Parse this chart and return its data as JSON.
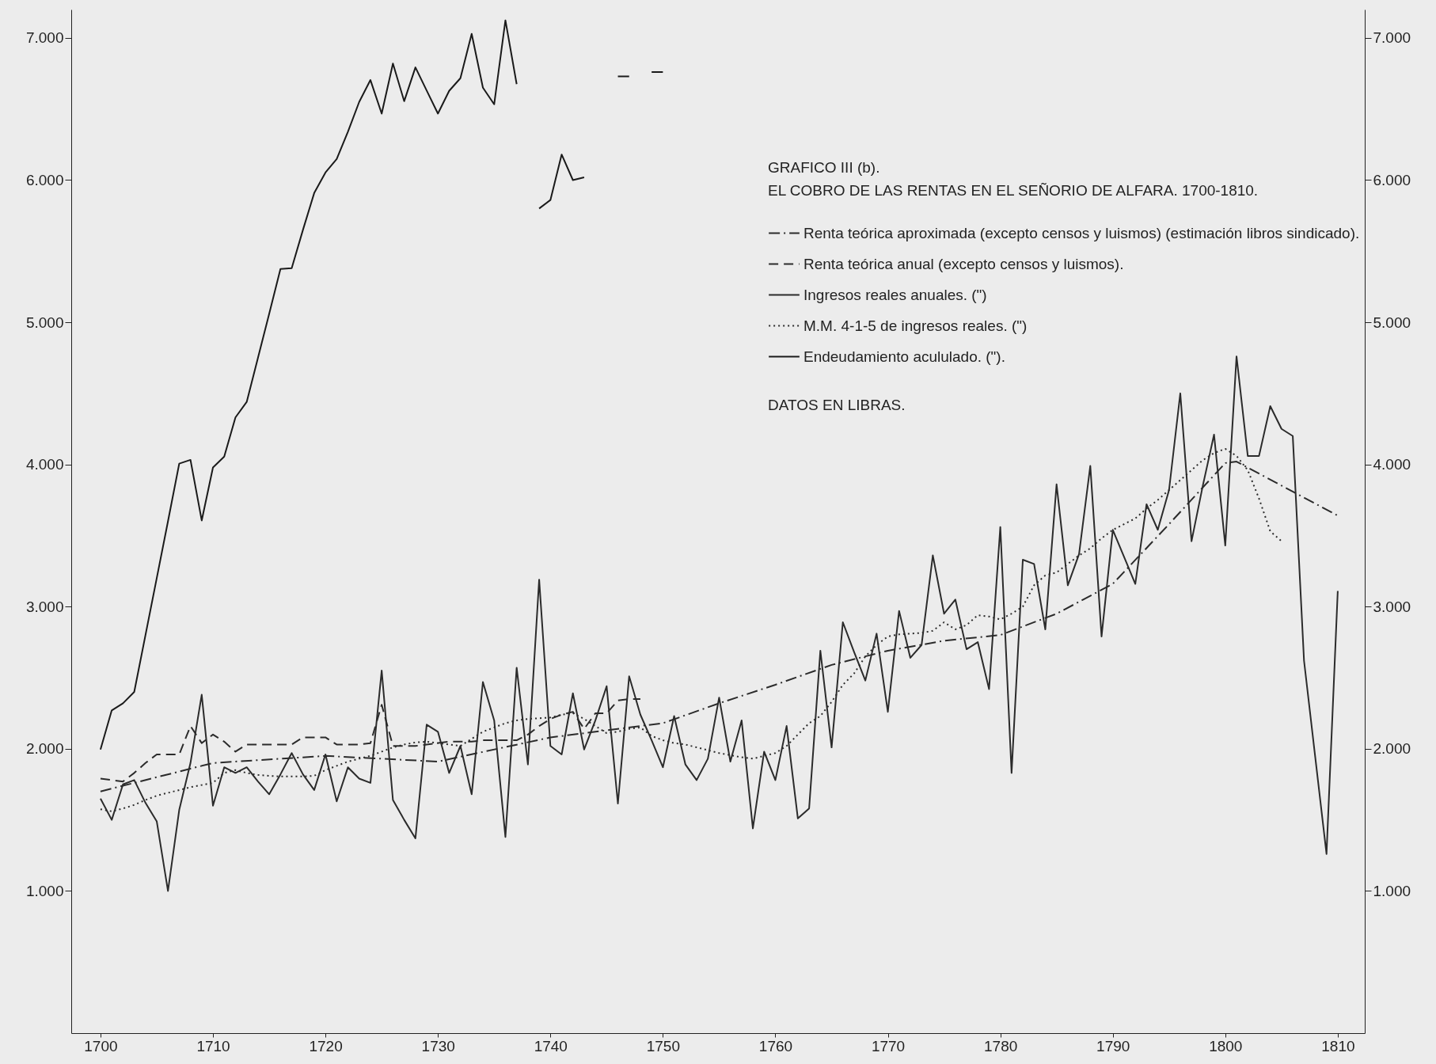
{
  "chart_data": {
    "type": "line",
    "title": "GRAFICO III (b).",
    "subtitle": "EL COBRO DE LAS RENTAS EN EL SEÑORIO DE ALFARA. 1700-1810.",
    "annotations": [
      "DATOS EN LIBRAS."
    ],
    "xlim": [
      1697.4,
      1812.4
    ],
    "xticks": [
      1700,
      1710,
      1720,
      1730,
      1740,
      1750,
      1760,
      1770,
      1780,
      1790,
      1800,
      1810
    ],
    "ylim": [
      0,
      7200
    ],
    "yticks": [
      {
        "value": 1000,
        "label": "1.000"
      },
      {
        "value": 2000,
        "label": "2.000"
      },
      {
        "value": 3000,
        "label": "3.000"
      },
      {
        "value": 4000,
        "label": "4.000"
      },
      {
        "value": 5000,
        "label": "5.000"
      },
      {
        "value": 6000,
        "label": "6.000"
      },
      {
        "value": 7000,
        "label": "7.000"
      }
    ],
    "y2lim": [
      0,
      7200
    ],
    "y2ticks": [
      {
        "value": 1000,
        "label": "1.000"
      },
      {
        "value": 2000,
        "label": "2.000"
      },
      {
        "value": 3000,
        "label": "3.000"
      },
      {
        "value": 4000,
        "label": "4.000"
      },
      {
        "value": 5000,
        "label": "5.000"
      },
      {
        "value": 6000,
        "label": "6.000"
      },
      {
        "value": 7000,
        "label": "7.000"
      }
    ],
    "legend": "top right",
    "series": [
      {
        "name": "Renta teórica aproximada (excepto censos y luismos) (estimación libros sindicado).",
        "color": "#2b2b2b",
        "line_style": "dashdot",
        "x": [
          1700,
          1710,
          1720,
          1730,
          1740,
          1750,
          1755,
          1760,
          1765,
          1770,
          1775,
          1780,
          1785,
          1790,
          1795,
          1800,
          1801,
          1810
        ],
        "values": [
          1700,
          1900,
          1950,
          1910,
          2080,
          2180,
          2320,
          2450,
          2590,
          2690,
          2760,
          2800,
          2950,
          3160,
          3580,
          4010,
          4020,
          3640
        ]
      },
      {
        "name": "Renta teórica anual (excepto censos y luismos).",
        "color": "#2b2b2b",
        "line_style": "dashed",
        "x": [
          1700,
          1701,
          1702,
          1703,
          1704,
          1705,
          1706,
          1707,
          1708,
          1709,
          1710,
          1711,
          1712,
          1713,
          1714,
          1715,
          1716,
          1717,
          1718,
          1719,
          1720,
          1721,
          1722,
          1723,
          1724,
          1725,
          1726,
          1727,
          1728,
          1729,
          1730,
          1731,
          1732,
          1733,
          1734,
          1735,
          1736,
          1737,
          1738,
          1739,
          1740,
          1741,
          1742,
          1743,
          1744,
          1745,
          1746,
          1747,
          1748
        ],
        "values": [
          1790,
          1780,
          1770,
          1830,
          1900,
          1960,
          1960,
          1960,
          2160,
          2040,
          2100,
          2050,
          1980,
          2030,
          2030,
          2030,
          2030,
          2030,
          2080,
          2080,
          2080,
          2030,
          2030,
          2030,
          2040,
          2310,
          2020,
          2020,
          2020,
          2030,
          2040,
          2050,
          2050,
          2050,
          2060,
          2060,
          2060,
          2060,
          2100,
          2160,
          2210,
          2240,
          2260,
          2140,
          2250,
          2250,
          2340,
          2350,
          2350
        ]
      },
      {
        "name": "Ingresos reales anuales. (\")",
        "color": "#2b2b2b",
        "line_style": "solid",
        "x": [
          1700,
          1701,
          1702,
          1703,
          1704,
          1705,
          1706,
          1707,
          1708,
          1709,
          1710,
          1711,
          1712,
          1713,
          1714,
          1715,
          1716,
          1717,
          1718,
          1719,
          1720,
          1721,
          1722,
          1723,
          1724,
          1725,
          1726,
          1727,
          1728,
          1729,
          1730,
          1731,
          1732,
          1733,
          1734,
          1735,
          1736,
          1737,
          1738,
          1739,
          1740,
          1741,
          1742,
          1743,
          1744,
          1745,
          1746,
          1747,
          1748,
          1749,
          1750,
          1751,
          1752,
          1753,
          1754,
          1755,
          1756,
          1757,
          1758,
          1759,
          1760,
          1761,
          1762,
          1763,
          1764,
          1765,
          1766,
          1767,
          1768,
          1769,
          1770,
          1771,
          1772,
          1773,
          1774,
          1775,
          1776,
          1777,
          1778,
          1779,
          1780,
          1781,
          1782,
          1783,
          1784,
          1785,
          1786,
          1787,
          1788,
          1789,
          1790,
          1791,
          1792,
          1793,
          1794,
          1795,
          1796,
          1797,
          1798,
          1799,
          1800,
          1801,
          1802,
          1803,
          1804,
          1805,
          1806,
          1807,
          1808,
          1809,
          1810
        ],
        "values": [
          1650,
          1500,
          1750,
          1780,
          1620,
          1490,
          1000,
          1570,
          1900,
          2380,
          1600,
          1870,
          1830,
          1870,
          1770,
          1680,
          1820,
          1970,
          1820,
          1710,
          1960,
          1630,
          1870,
          1790,
          1760,
          2550,
          1640,
          1500,
          1370,
          2170,
          2120,
          1830,
          2020,
          1680,
          2470,
          2200,
          1380,
          2570,
          1890,
          3190,
          2020,
          1960,
          2390,
          1995,
          2200,
          2440,
          1615,
          2510,
          2240,
          2060,
          1870,
          2230,
          1890,
          1780,
          1930,
          2360,
          1910,
          2200,
          1440,
          1980,
          1780,
          2160,
          1510,
          1580,
          2690,
          2010,
          2890,
          2680,
          2480,
          2810,
          2260,
          2970,
          2640,
          2730,
          3360,
          2950,
          3050,
          2700,
          2750,
          2420,
          3560,
          1830,
          3330,
          3300,
          2840,
          3860,
          3150,
          3370,
          3990,
          2790,
          3540,
          3350,
          3160,
          3720,
          3540,
          3820,
          4500,
          3460,
          3850,
          4210,
          3430,
          4760,
          4060,
          4060,
          4410,
          4250,
          4200,
          2620,
          1940,
          1260,
          3110
        ]
      },
      {
        "name": "M.M. 4-1-5 de ingresos reales. (\")",
        "color": "#2b2b2b",
        "line_style": "dotted",
        "x": [
          1700,
          1701,
          1702,
          1703,
          1704,
          1705,
          1706,
          1707,
          1708,
          1709,
          1710,
          1711,
          1712,
          1713,
          1714,
          1715,
          1716,
          1717,
          1718,
          1719,
          1720,
          1721,
          1722,
          1723,
          1724,
          1725,
          1726,
          1727,
          1728,
          1729,
          1730,
          1731,
          1732,
          1733,
          1734,
          1735,
          1736,
          1737,
          1738,
          1739,
          1740,
          1741,
          1742,
          1743,
          1744,
          1745,
          1746,
          1747,
          1748,
          1749,
          1750,
          1751,
          1752,
          1753,
          1754,
          1755,
          1756,
          1757,
          1758,
          1759,
          1760,
          1761,
          1762,
          1763,
          1764,
          1765,
          1766,
          1767,
          1768,
          1769,
          1770,
          1771,
          1772,
          1773,
          1774,
          1775,
          1776,
          1777,
          1778,
          1779,
          1780,
          1781,
          1782,
          1783,
          1784,
          1785,
          1786,
          1787,
          1788,
          1789,
          1790,
          1791,
          1792,
          1793,
          1794,
          1795,
          1796,
          1797,
          1798,
          1799,
          1800,
          1801,
          1802,
          1803,
          1804,
          1805
        ],
        "values": [
          1575,
          1560,
          1580,
          1605,
          1640,
          1670,
          1690,
          1710,
          1730,
          1745,
          1760,
          1830,
          1850,
          1830,
          1816,
          1810,
          1805,
          1805,
          1805,
          1810,
          1850,
          1880,
          1910,
          1930,
          1950,
          1980,
          2010,
          2030,
          2045,
          2050,
          2040,
          2030,
          2020,
          2070,
          2120,
          2150,
          2180,
          2200,
          2210,
          2215,
          2220,
          2240,
          2250,
          2210,
          2160,
          2110,
          2120,
          2140,
          2150,
          2090,
          2060,
          2040,
          2030,
          2010,
          1990,
          1970,
          1955,
          1940,
          1930,
          1950,
          1970,
          2020,
          2100,
          2180,
          2230,
          2330,
          2450,
          2530,
          2650,
          2730,
          2790,
          2805,
          2810,
          2815,
          2830,
          2890,
          2840,
          2870,
          2940,
          2930,
          2910,
          2950,
          3000,
          3150,
          3220,
          3240,
          3300,
          3360,
          3410,
          3480,
          3540,
          3580,
          3620,
          3690,
          3750,
          3820,
          3890,
          3960,
          4030,
          4080,
          4110,
          4060,
          3960,
          3760,
          3530,
          3460
        ]
      },
      {
        "name": "Endeudamiento acululado. (\").",
        "color": "#1a1a1a",
        "line_style": "solid",
        "x": [
          1700,
          1701,
          1702,
          1703,
          1704,
          1705,
          1706,
          1707,
          1708,
          1709,
          1710,
          1711,
          1712,
          1713,
          1714,
          1715,
          1716,
          1717,
          1718,
          1719,
          1720,
          1721,
          1722,
          1723,
          1724,
          1725,
          1726,
          1727,
          1728,
          1729,
          1730,
          1731,
          1732,
          1733,
          1734,
          1735,
          1736,
          1737,
          1738,
          1739,
          1740,
          1741,
          1742,
          1743,
          1744,
          1745,
          1746,
          1747,
          1748,
          1749,
          1750
        ],
        "values": [
          1995,
          2270,
          2320,
          2400,
          2800,
          3200,
          3600,
          4006,
          4032,
          3606,
          3979,
          4055,
          4331,
          4440,
          4750,
          5060,
          5375,
          5380,
          5650,
          5909,
          6053,
          6148,
          6340,
          6550,
          6704,
          6468,
          6820,
          6555,
          6793,
          6630,
          6468,
          6628,
          6717,
          7029,
          6650,
          6533,
          7124,
          6675,
          null,
          5800,
          5860,
          6180,
          6000,
          6020,
          null,
          null,
          6730,
          6730,
          null,
          6760,
          6760
        ]
      }
    ]
  }
}
